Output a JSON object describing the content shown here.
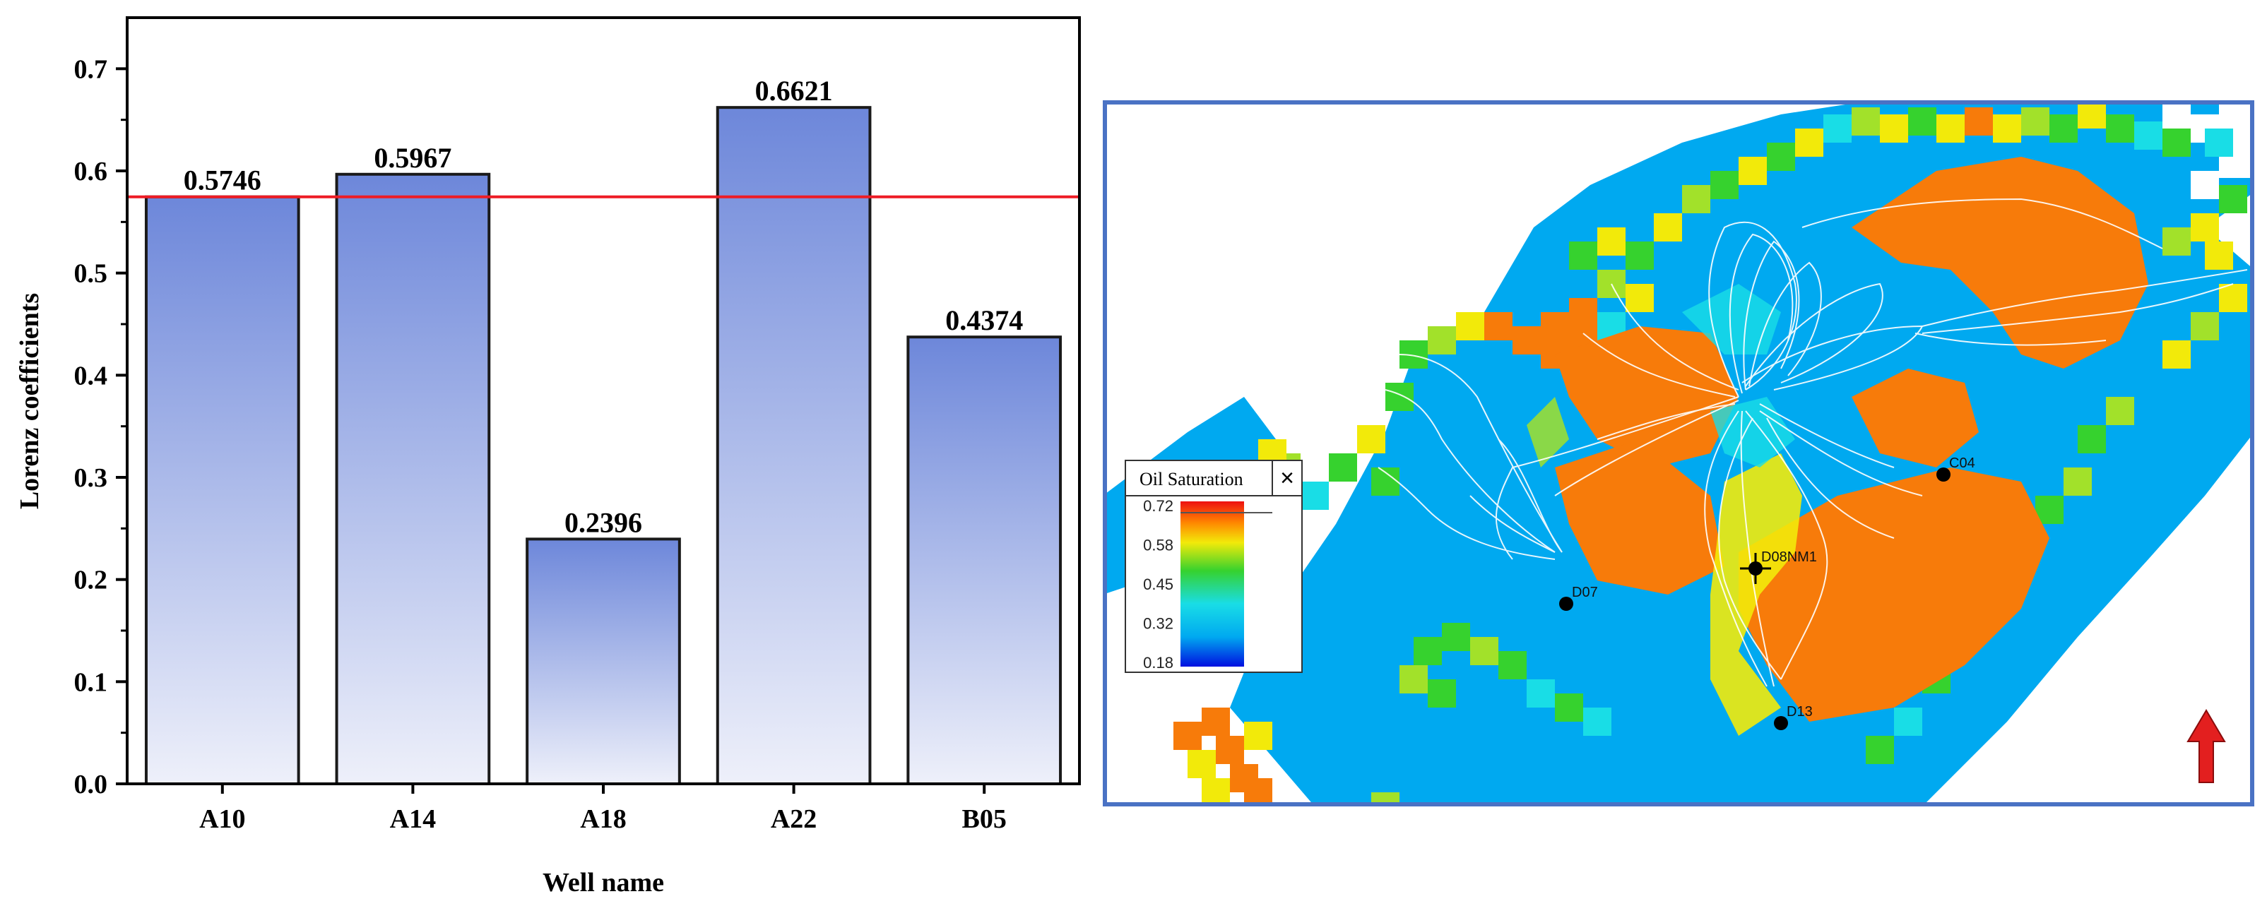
{
  "chart_data": {
    "type": "bar",
    "categories": [
      "A10",
      "A14",
      "A18",
      "A22",
      "B05"
    ],
    "values": [
      0.5746,
      0.5967,
      0.2396,
      0.6621,
      0.4374
    ],
    "value_labels": [
      "0.5746",
      "0.5967",
      "0.2396",
      "0.6621",
      "0.4374"
    ],
    "xlabel": "Well name",
    "ylabel": "Lorenz coefficients",
    "ylim": [
      0,
      0.75
    ],
    "yticks": [
      "0.0",
      "0.1",
      "0.2",
      "0.3",
      "0.4",
      "0.5",
      "0.6",
      "0.7"
    ],
    "reference_line": {
      "y": 0.5746,
      "color": "#ee1c25"
    },
    "bar_color_top": "#6d87da",
    "bar_color_bottom": "#eef0fa",
    "grid": false,
    "legend": "none"
  },
  "map": {
    "legend_title": "Oil Saturation",
    "legend_close": "×",
    "legend_ticks": [
      "0.72",
      "0.58",
      "0.45",
      "0.32",
      "0.18"
    ],
    "wells": [
      "C04",
      "D08NM1",
      "D07",
      "D13"
    ],
    "north_arrow_color": "#e31f1f",
    "frame_color": "#4a72c4",
    "colors": {
      "water": "#00a9f0",
      "cyan": "#19dde6",
      "green": "#36d22e",
      "light_green": "#a2e12a",
      "yellow": "#f2ea0a",
      "orange": "#f77b0a"
    }
  }
}
